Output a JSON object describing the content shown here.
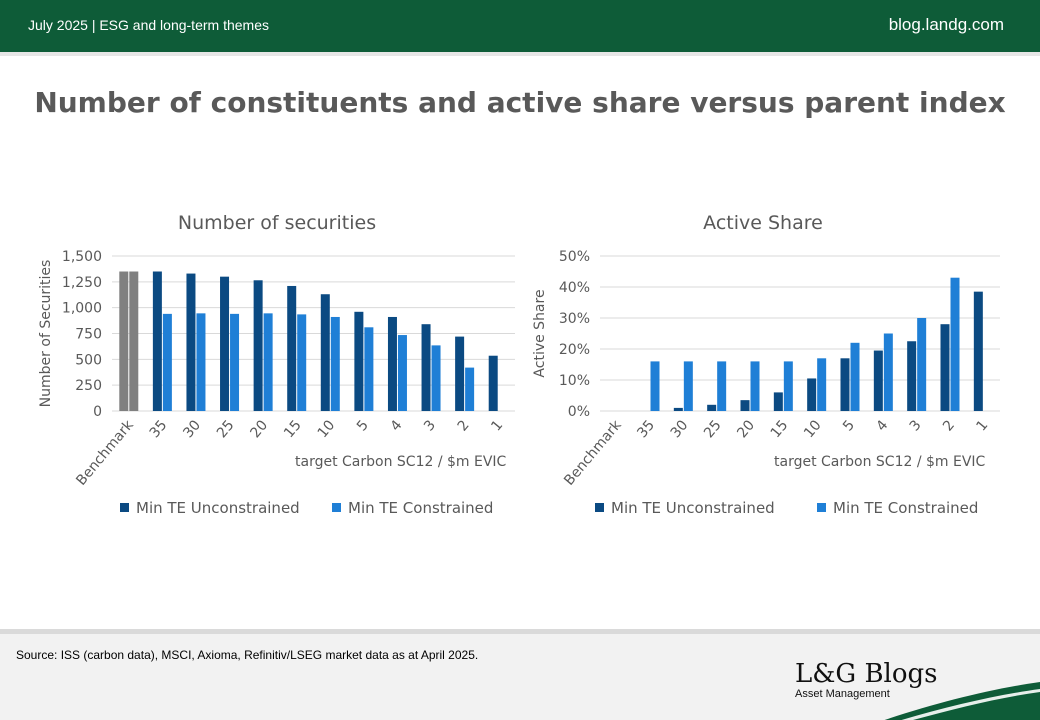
{
  "header": {
    "date_theme": "July 2025 | ESG and long-term themes",
    "site": "blog.landg.com"
  },
  "title": "Number of constituents and active share versus parent index",
  "colors": {
    "brand_green": "#0e5c38",
    "benchmark": "#808080",
    "unconstrained": "#0b4a82",
    "constrained": "#1f7fd6"
  },
  "chart_data": [
    {
      "type": "bar",
      "title": "Number of securities",
      "xlabel": "target Carbon  SC12 / $m EVIC",
      "ylabel": "Number of Securities",
      "ylim": [
        0,
        1500
      ],
      "yticks": [
        "0",
        "250",
        "500",
        "750",
        "1,000",
        "1,250",
        "1,500"
      ],
      "grid": true,
      "legend_position": "bottom",
      "categories": [
        "Benchmark",
        "35",
        "30",
        "25",
        "20",
        "15",
        "10",
        "5",
        "4",
        "3",
        "2",
        "1"
      ],
      "series": [
        {
          "name": "Min TE Unconstrained",
          "values": [
            1350,
            1350,
            1330,
            1300,
            1265,
            1210,
            1130,
            960,
            910,
            840,
            720,
            535
          ]
        },
        {
          "name": "Min TE Constrained",
          "values": [
            1350,
            940,
            945,
            940,
            945,
            935,
            910,
            810,
            735,
            635,
            420,
            null
          ]
        }
      ]
    },
    {
      "type": "bar",
      "title": "Active Share",
      "xlabel": "target Carbon  SC12 / $m EVIC",
      "ylabel": "Active Share",
      "ylim": [
        0,
        50
      ],
      "yticks": [
        "0%",
        "10%",
        "20%",
        "30%",
        "40%",
        "50%"
      ],
      "grid": true,
      "legend_position": "bottom",
      "categories": [
        "Benchmark",
        "35",
        "30",
        "25",
        "20",
        "15",
        "10",
        "5",
        "4",
        "3",
        "2",
        "1"
      ],
      "series": [
        {
          "name": "Min TE Unconstrained",
          "values": [
            0,
            0,
            1,
            2,
            3.5,
            6,
            10.5,
            17,
            19.5,
            22.5,
            28,
            38.5
          ]
        },
        {
          "name": "Min TE Constrained",
          "values": [
            0,
            16,
            16,
            16,
            16,
            16,
            17,
            22,
            25,
            30,
            43,
            null
          ]
        }
      ]
    }
  ],
  "footer": {
    "source": "Source: ISS (carbon data), MSCI, Axioma,  Refinitiv/LSEG market data as at April 2025.",
    "logo_name": "L&G Blogs",
    "logo_sub": "Asset Management"
  }
}
